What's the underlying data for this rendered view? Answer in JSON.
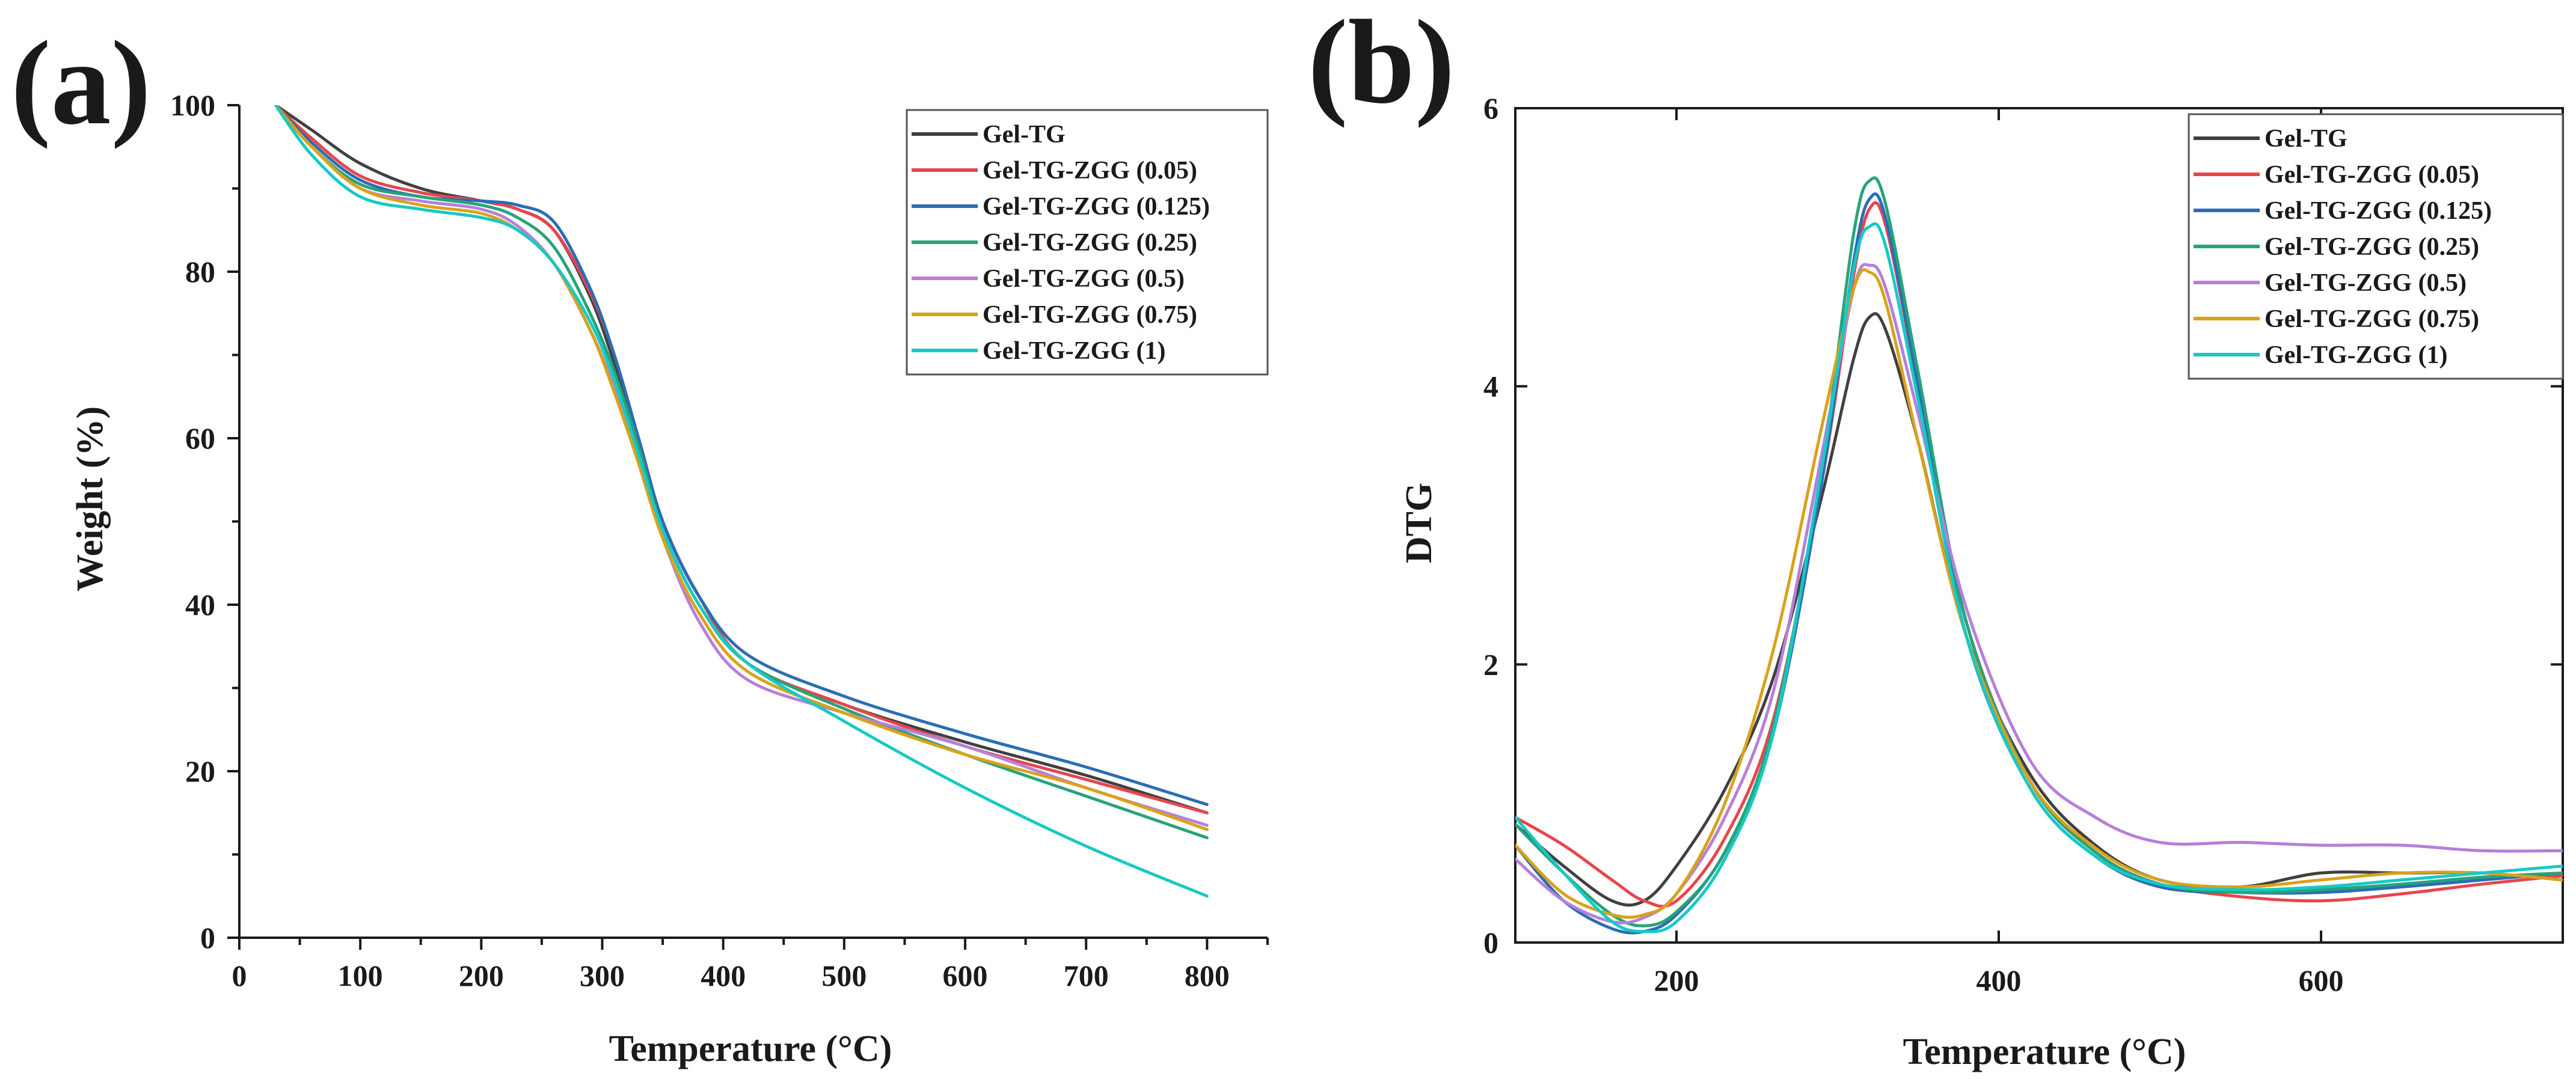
{
  "chart_data": [
    {
      "panel": "(a)",
      "type": "line",
      "title": "",
      "xlabel": "Temperature (°C)",
      "ylabel": "Weight (%)",
      "xlim": [
        0,
        850
      ],
      "ylim": [
        0,
        100
      ],
      "xticks": [
        0,
        100,
        200,
        300,
        400,
        500,
        600,
        700,
        800
      ],
      "yticks": [
        0,
        20,
        40,
        60,
        80,
        100
      ],
      "legend_position": "top-right",
      "series": [
        {
          "name": "Gel-TG",
          "color": "#404040",
          "x": [
            30,
            60,
            100,
            150,
            200,
            230,
            260,
            290,
            310,
            330,
            350,
            380,
            420,
            500,
            600,
            700,
            800
          ],
          "y": [
            100,
            97,
            93,
            90,
            88.5,
            87.5,
            85,
            77,
            69,
            60,
            50,
            41,
            33,
            28,
            23.5,
            19.5,
            15
          ]
        },
        {
          "name": "Gel-TG-ZGG (0.05)",
          "color": "#e8454c",
          "x": [
            30,
            60,
            100,
            150,
            200,
            230,
            260,
            290,
            310,
            330,
            350,
            380,
            420,
            500,
            600,
            700,
            800
          ],
          "y": [
            100,
            96,
            91.5,
            89.5,
            88.5,
            87.5,
            85,
            77.5,
            70,
            60,
            50,
            41,
            33,
            28,
            23,
            19,
            15
          ]
        },
        {
          "name": "Gel-TG-ZGG (0.125)",
          "color": "#2a6db5",
          "x": [
            30,
            60,
            100,
            150,
            200,
            230,
            260,
            290,
            310,
            330,
            350,
            380,
            420,
            500,
            600,
            700,
            800
          ],
          "y": [
            100,
            95.5,
            91,
            89,
            88.5,
            88,
            86,
            78,
            70,
            60,
            50,
            41,
            34,
            29,
            24.5,
            20.5,
            16
          ]
        },
        {
          "name": "Gel-TG-ZGG (0.25)",
          "color": "#27a37a",
          "x": [
            30,
            60,
            100,
            150,
            200,
            230,
            260,
            290,
            310,
            330,
            350,
            380,
            420,
            500,
            600,
            700,
            800
          ],
          "y": [
            100,
            95,
            90.5,
            89,
            88,
            86.5,
            83,
            75,
            68,
            59,
            49,
            40,
            33,
            27.5,
            22,
            17,
            12
          ]
        },
        {
          "name": "Gel-TG-ZGG (0.5)",
          "color": "#b77fd9",
          "x": [
            30,
            60,
            100,
            150,
            200,
            230,
            260,
            290,
            310,
            330,
            350,
            380,
            420,
            500,
            600,
            700,
            800
          ],
          "y": [
            100,
            95,
            90,
            88.5,
            87.5,
            85.5,
            81,
            73,
            66,
            57,
            48,
            38,
            31,
            27,
            23,
            18,
            13.5
          ]
        },
        {
          "name": "Gel-TG-ZGG (0.75)",
          "color": "#d9a21a",
          "x": [
            30,
            60,
            100,
            150,
            200,
            230,
            260,
            290,
            310,
            330,
            350,
            380,
            420,
            500,
            600,
            700,
            800
          ],
          "y": [
            100,
            95,
            90,
            88,
            87,
            85,
            81,
            73,
            65.5,
            57,
            48,
            39,
            32,
            27,
            22,
            18,
            13
          ]
        },
        {
          "name": "Gel-TG-ZGG (1)",
          "color": "#17c9c4",
          "x": [
            30,
            60,
            100,
            150,
            200,
            230,
            260,
            290,
            310,
            330,
            350,
            380,
            420,
            500,
            600,
            700,
            800
          ],
          "y": [
            100,
            94,
            89,
            87.5,
            86.5,
            85,
            81,
            74,
            67,
            58,
            49,
            40,
            33,
            26,
            18,
            11,
            5
          ]
        }
      ]
    },
    {
      "panel": "(b)",
      "type": "line",
      "title": "",
      "xlabel": "Temperature (°C)",
      "ylabel": "DTG",
      "xlim": [
        100,
        750
      ],
      "ylim": [
        0,
        6
      ],
      "xticks": [
        200,
        400,
        600
      ],
      "yticks": [
        0,
        2,
        4,
        6
      ],
      "legend_position": "top-right",
      "series": [
        {
          "name": "Gel-TG",
          "color": "#404040",
          "x": [
            100,
            130,
            160,
            180,
            200,
            230,
            260,
            290,
            310,
            320,
            330,
            350,
            380,
            420,
            460,
            500,
            550,
            600,
            650,
            700,
            750
          ],
          "y": [
            0.85,
            0.55,
            0.3,
            0.3,
            0.55,
            1.1,
            1.9,
            3.2,
            4.2,
            4.5,
            4.4,
            3.6,
            2.2,
            1.2,
            0.7,
            0.45,
            0.4,
            0.5,
            0.5,
            0.5,
            0.45
          ]
        },
        {
          "name": "Gel-TG-ZGG (0.05)",
          "color": "#e8454c",
          "x": [
            100,
            130,
            160,
            180,
            200,
            230,
            260,
            290,
            310,
            320,
            330,
            350,
            380,
            420,
            460,
            500,
            550,
            600,
            650,
            700,
            750
          ],
          "y": [
            0.9,
            0.7,
            0.45,
            0.3,
            0.3,
            0.75,
            1.6,
            3.3,
            4.8,
            5.28,
            5.15,
            4.0,
            2.3,
            1.15,
            0.65,
            0.42,
            0.33,
            0.3,
            0.35,
            0.42,
            0.48
          ]
        },
        {
          "name": "Gel-TG-ZGG (0.125)",
          "color": "#2a6db5",
          "x": [
            100,
            130,
            160,
            180,
            200,
            230,
            260,
            290,
            310,
            320,
            330,
            350,
            380,
            420,
            460,
            500,
            550,
            600,
            650,
            700,
            750
          ],
          "y": [
            0.7,
            0.3,
            0.1,
            0.08,
            0.2,
            0.65,
            1.5,
            3.3,
            4.9,
            5.35,
            5.2,
            4.0,
            2.2,
            1.1,
            0.62,
            0.4,
            0.36,
            0.36,
            0.4,
            0.45,
            0.5
          ]
        },
        {
          "name": "Gel-TG-ZGG (0.25)",
          "color": "#27a37a",
          "x": [
            100,
            130,
            160,
            180,
            200,
            230,
            260,
            290,
            310,
            320,
            330,
            350,
            380,
            420,
            460,
            500,
            550,
            600,
            650,
            700,
            750
          ],
          "y": [
            0.85,
            0.5,
            0.2,
            0.12,
            0.22,
            0.65,
            1.55,
            3.4,
            5.1,
            5.48,
            5.3,
            4.1,
            2.3,
            1.15,
            0.65,
            0.42,
            0.36,
            0.38,
            0.42,
            0.47,
            0.5
          ]
        },
        {
          "name": "Gel-TG-ZGG (0.5)",
          "color": "#b77fd9",
          "x": [
            100,
            130,
            160,
            180,
            200,
            230,
            260,
            290,
            310,
            320,
            330,
            350,
            380,
            420,
            460,
            500,
            550,
            600,
            650,
            700,
            750
          ],
          "y": [
            0.6,
            0.3,
            0.15,
            0.18,
            0.35,
            0.9,
            1.8,
            3.5,
            4.7,
            4.87,
            4.7,
            3.8,
            2.4,
            1.3,
            0.9,
            0.72,
            0.72,
            0.7,
            0.7,
            0.66,
            0.66
          ]
        },
        {
          "name": "Gel-TG-ZGG (0.75)",
          "color": "#d9a21a",
          "x": [
            100,
            130,
            160,
            180,
            200,
            230,
            260,
            290,
            310,
            320,
            330,
            350,
            380,
            420,
            460,
            500,
            550,
            600,
            650,
            700,
            750
          ],
          "y": [
            0.7,
            0.35,
            0.2,
            0.2,
            0.35,
            1.0,
            2.1,
            3.7,
            4.7,
            4.82,
            4.6,
            3.6,
            2.2,
            1.15,
            0.68,
            0.45,
            0.4,
            0.45,
            0.5,
            0.5,
            0.45
          ]
        },
        {
          "name": "Gel-TG-ZGG (1)",
          "color": "#17c9c4",
          "x": [
            100,
            130,
            160,
            180,
            200,
            230,
            260,
            290,
            310,
            320,
            330,
            350,
            380,
            420,
            460,
            500,
            550,
            600,
            650,
            700,
            750
          ],
          "y": [
            0.9,
            0.5,
            0.15,
            0.08,
            0.15,
            0.6,
            1.5,
            3.4,
            4.85,
            5.15,
            5.0,
            3.9,
            2.2,
            1.1,
            0.62,
            0.42,
            0.38,
            0.4,
            0.45,
            0.5,
            0.55
          ]
        }
      ]
    }
  ]
}
